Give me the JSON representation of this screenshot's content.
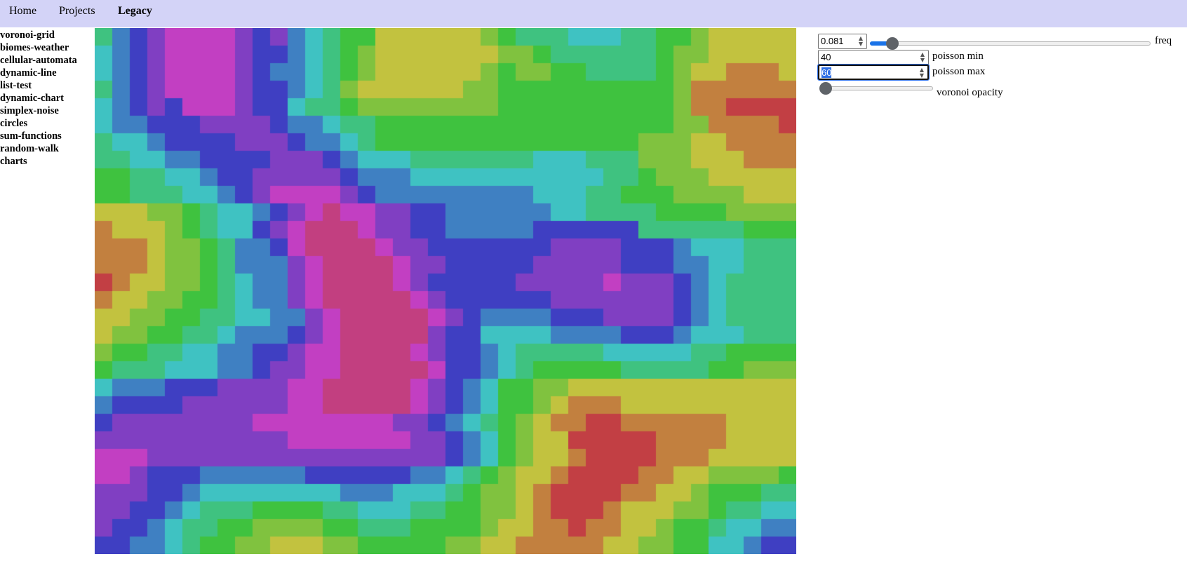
{
  "nav": {
    "items": [
      {
        "label": "Home",
        "active": false
      },
      {
        "label": "Projects",
        "active": false
      },
      {
        "label": "Legacy",
        "active": true
      }
    ]
  },
  "sidebar": {
    "items": [
      "voronoi-grid",
      "biomes-weather",
      "cellular-automata",
      "dynamic-line",
      "list-test",
      "dynamic-chart",
      "simplex-noise",
      "circles",
      "sum-functions",
      "random-walk",
      "charts"
    ]
  },
  "controls": {
    "freq": {
      "label": "freq",
      "value": "0.081",
      "slider_fraction": 0.06
    },
    "poisson_min": {
      "label": "poisson min",
      "value": "40"
    },
    "poisson_max": {
      "label": "poisson max",
      "value": "60"
    },
    "voronoi_opacity": {
      "label": "voronoi opacity",
      "slider_fraction": 0.0
    }
  },
  "grid": {
    "palette": {
      "0": "#c23f44",
      "1": "#c2803f",
      "2": "#c2c23f",
      "3": "#80c23f",
      "4": "#3fc23f",
      "5": "#3fc280",
      "6": "#3fc2c2",
      "7": "#3f80c2",
      "8": "#3f3fc2",
      "9": "#803fc2",
      "A": "#c23fc2",
      "B": "#c23f80"
    },
    "rows": [
      "5789AAAAA989765443222222344555666554443222222",
      "6789AAAAA988765433222222233345555554433222222",
      "6789AAAAA987765432222222343334455554432211122",
      "5789AAAAA9887654322222223344444444444331111112",
      "67898AAAA9886554433333333344444444444331100000",
      "778889AAA998765544443333334444444444333110000",
      "6778889999987766554444444444444444444333111100",
      "5667888889998776654444444444444444433332211111",
      "5566778888899987766655555555666655533332221111",
      "4455667788999A998777666666666666655543333222222",
      "44555667789AAAA9987777777777666655444333332222",
      "334455667789AAAA99887777777766655544443333322222",
      "22233445667789ABBAA998887777777666555544444333332",
      "1222334566789ABBBBA998887777778888888555555554444",
      "11122334567789ABBBBBA999888888888999988888766655555",
      "111223345677789ABBBBBA99988888899999998887776655555",
      "012223345667789ABBBBBA99888888999999A99998876555555",
      "1112233456677889ABBBBBBA998888899999999998887665555",
      "122333445667789ABBBBBBA9988888889999999998876555555",
      "2233344555667789ABBBBBBA99877777888899999876655555",
      "2334445566777889ABBBBBBA988766666777788887766655554",
      "34455566777889AABBBBBBA98876655555566666655544444",
      "45556666778899AABBBBBBA9887655444444555554443333",
      "56677778889999ABBBBBBBA98876544433333333333322222",
      "6777888899999AABBBBBBBA98765443322222222222222222",
      "7888889999999AABBBBBBAA98765443221112222222222222",
      "89999999999AAAAAAAAAA99887654332110001111111222222",
      "9999999999999AAAAAAAA9998765432210000011111222222",
      "AAA99999999999999999999876543221000001112222223",
      "AAA9998888888888889999987654322100000111222223344",
      "AA988877777778888888777654432210000011222333344",
      "999887766666666677776665543322100001112233444556",
      "998877655544444555666554443321100011222334455667",
      "9887665544333334445555444433221100112233445566778",
      "887766544332222333444443332211111122233445667889",
      "77766554322222223333444433322111112233445566789"
    ]
  }
}
